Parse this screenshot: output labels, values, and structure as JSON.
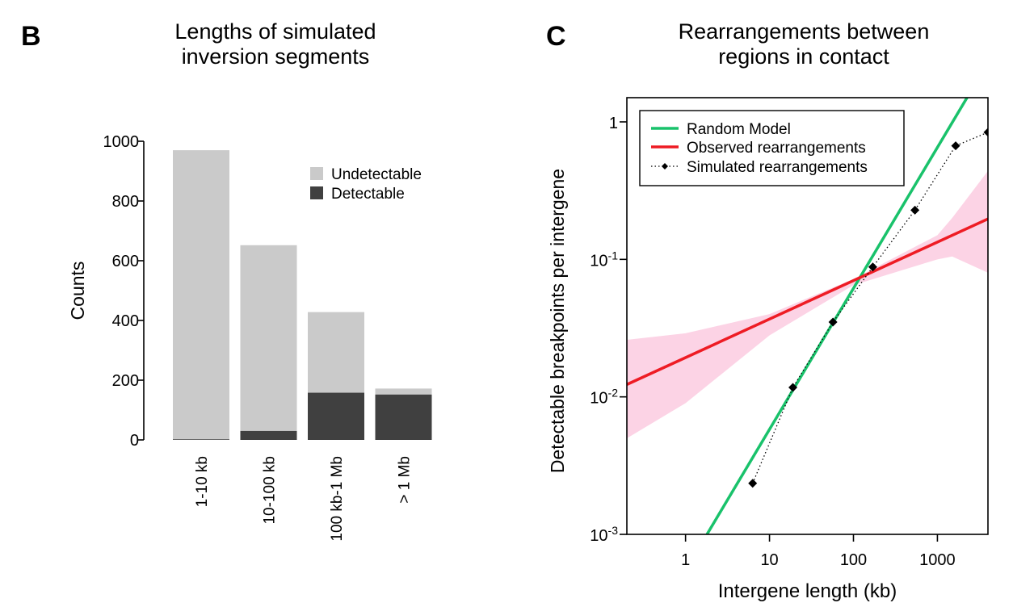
{
  "panels": {
    "b_letter": "B",
    "c_letter": "C"
  },
  "colors": {
    "undetectable": "#cacaca",
    "detectable": "#404040",
    "random_model": "#19c26b",
    "observed": "#ee1c24",
    "ci_band": "#fcd3e5",
    "simulated": "#000000"
  },
  "chart_data": [
    {
      "type": "bar",
      "stacked": true,
      "title_line1": "Lengths of simulated",
      "title_line2": "inversion segments",
      "xlabel": "",
      "ylabel": "Counts",
      "ylim": [
        0,
        1000
      ],
      "yticks": [
        0,
        200,
        400,
        600,
        800,
        1000
      ],
      "grid": false,
      "legend_position": "top-right",
      "categories": [
        "1-10 kb",
        "10-100 kb",
        "100 kb-1 Mb",
        "> 1 Mb"
      ],
      "series": [
        {
          "name": "Detectable",
          "values": [
            2,
            30,
            158,
            152
          ]
        },
        {
          "name": "Undetectable",
          "values": [
            968,
            622,
            270,
            20
          ]
        }
      ]
    },
    {
      "type": "line",
      "title_line1": "Rearrangements between",
      "title_line2": "regions in contact",
      "xlabel": "Intergene length (kb)",
      "ylabel": "Detectable breakpoints per intergene",
      "xscale": "log",
      "yscale": "log",
      "xlim": [
        0.2,
        4000
      ],
      "ylim": [
        0.001,
        1.5
      ],
      "xticks": [
        {
          "value": 1,
          "label": "1"
        },
        {
          "value": 10,
          "label": "10"
        },
        {
          "value": 100,
          "label": "100"
        },
        {
          "value": 1000,
          "label": "1000"
        }
      ],
      "yticks": [
        {
          "value": 0.001,
          "base": "10",
          "exp": "-3"
        },
        {
          "value": 0.01,
          "base": "10",
          "exp": "-2"
        },
        {
          "value": 0.1,
          "base": "10",
          "exp": "-1"
        },
        {
          "value": 1,
          "base": "1",
          "exp": ""
        }
      ],
      "grid": false,
      "legend_position": "top-left",
      "series": [
        {
          "name": "Random Model",
          "style": "solid",
          "x": [
            1.8,
            2400
          ],
          "y": [
            0.001,
            1.6
          ]
        },
        {
          "name": "Observed rearrangements",
          "style": "solid",
          "x": [
            0.2,
            4000
          ],
          "y": [
            0.0123,
            0.197
          ]
        },
        {
          "name": "Simulated rearrangements",
          "style": "dotted-points",
          "x": [
            6.3,
            19,
            57,
            170,
            540,
            1650,
            4000
          ],
          "y": [
            0.00235,
            0.0117,
            0.035,
            0.088,
            0.228,
            0.67,
            0.84
          ]
        }
      ],
      "confidence_band": {
        "x": [
          0.2,
          1,
          10,
          100,
          1000,
          1500,
          4000
        ],
        "upper": [
          0.026,
          0.029,
          0.04,
          0.072,
          0.15,
          0.2,
          0.44
        ],
        "lower": [
          0.005,
          0.009,
          0.028,
          0.065,
          0.1,
          0.105,
          0.08
        ]
      }
    }
  ]
}
